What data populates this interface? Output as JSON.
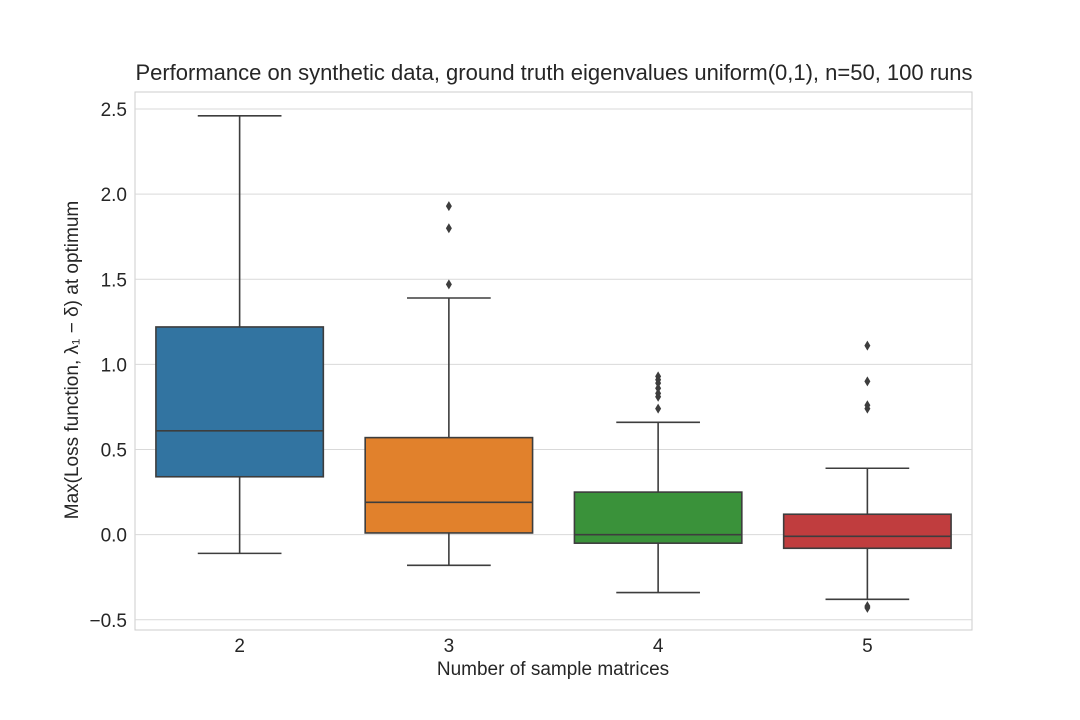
{
  "chart_data": {
    "type": "box",
    "title": "Performance on synthetic data, ground truth eigenvalues uniform(0,1), n=50, 100 runs",
    "xlabel": "Number of sample matrices",
    "ylabel": "Max(Loss function, λ₁ − δ) at optimum",
    "categories": [
      "2",
      "3",
      "4",
      "5"
    ],
    "ylim": [
      -0.56,
      2.6
    ],
    "yticks": [
      -0.5,
      0.0,
      0.5,
      1.0,
      1.5,
      2.0,
      2.5
    ],
    "ytick_labels": [
      "−0.5",
      "0.0",
      "0.5",
      "1.0",
      "1.5",
      "2.0",
      "2.5"
    ],
    "grid": true,
    "colors": [
      "#3274a1",
      "#e1812c",
      "#3a923a",
      "#c03d3e"
    ],
    "boxes": [
      {
        "category": "2",
        "whisker_low": -0.11,
        "q1": 0.34,
        "median": 0.61,
        "q3": 1.22,
        "whisker_high": 2.46,
        "outliers": []
      },
      {
        "category": "3",
        "whisker_low": -0.18,
        "q1": 0.01,
        "median": 0.19,
        "q3": 0.57,
        "whisker_high": 1.39,
        "outliers": [
          1.47,
          1.8,
          1.93
        ]
      },
      {
        "category": "4",
        "whisker_low": -0.34,
        "q1": -0.05,
        "median": 0.0,
        "q3": 0.25,
        "whisker_high": 0.66,
        "outliers": [
          0.74,
          0.81,
          0.83,
          0.86,
          0.89,
          0.91,
          0.93
        ]
      },
      {
        "category": "5",
        "whisker_low": -0.38,
        "q1": -0.08,
        "median": -0.01,
        "q3": 0.12,
        "whisker_high": 0.39,
        "outliers": [
          0.74,
          0.76,
          0.9,
          1.11,
          -0.42,
          -0.43
        ]
      }
    ]
  }
}
